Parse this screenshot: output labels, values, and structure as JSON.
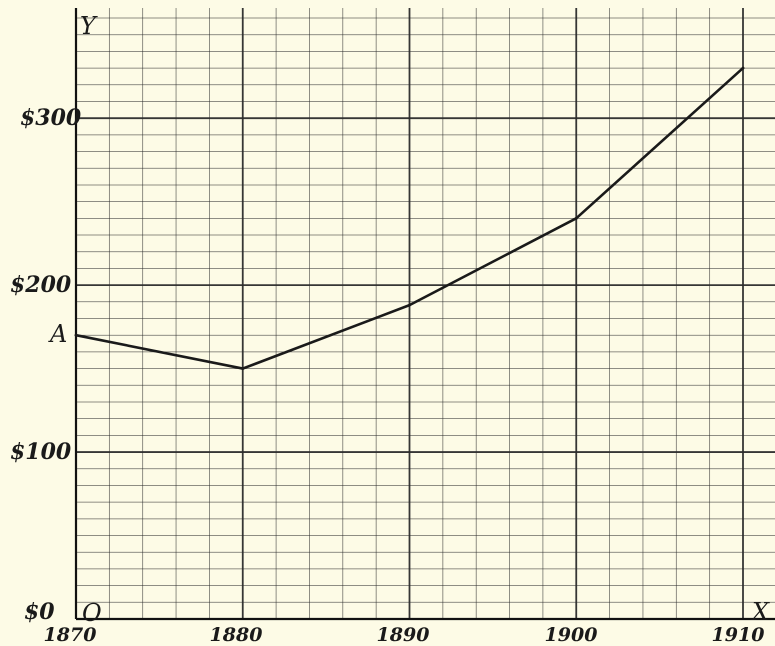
{
  "chart_data": {
    "type": "line",
    "x": [
      1870,
      1880,
      1890,
      1900,
      1910
    ],
    "x_tick_labels": [
      "1870",
      "1880",
      "1890",
      "1900",
      "1910"
    ],
    "series": [
      {
        "values": [
          170,
          150,
          188,
          240,
          330
        ]
      }
    ],
    "y_tick_labels": [
      {
        "value": 0,
        "label": "$0"
      },
      {
        "value": 100,
        "label": "$100"
      },
      {
        "value": 200,
        "label": "$200"
      },
      {
        "value": 300,
        "label": "$300"
      }
    ],
    "xlim": [
      1870,
      1910
    ],
    "ylim": [
      0,
      360
    ],
    "grid": true,
    "grid_minor_step_x": 2,
    "grid_minor_step_y": 10,
    "axis_labels": {
      "y_axis": "Y",
      "x_axis": "X",
      "origin": "O",
      "start_point": "A"
    },
    "colors": {
      "background": "#fdfbe6",
      "grid": "#2b2b2b",
      "line": "#1a1a1a"
    }
  }
}
